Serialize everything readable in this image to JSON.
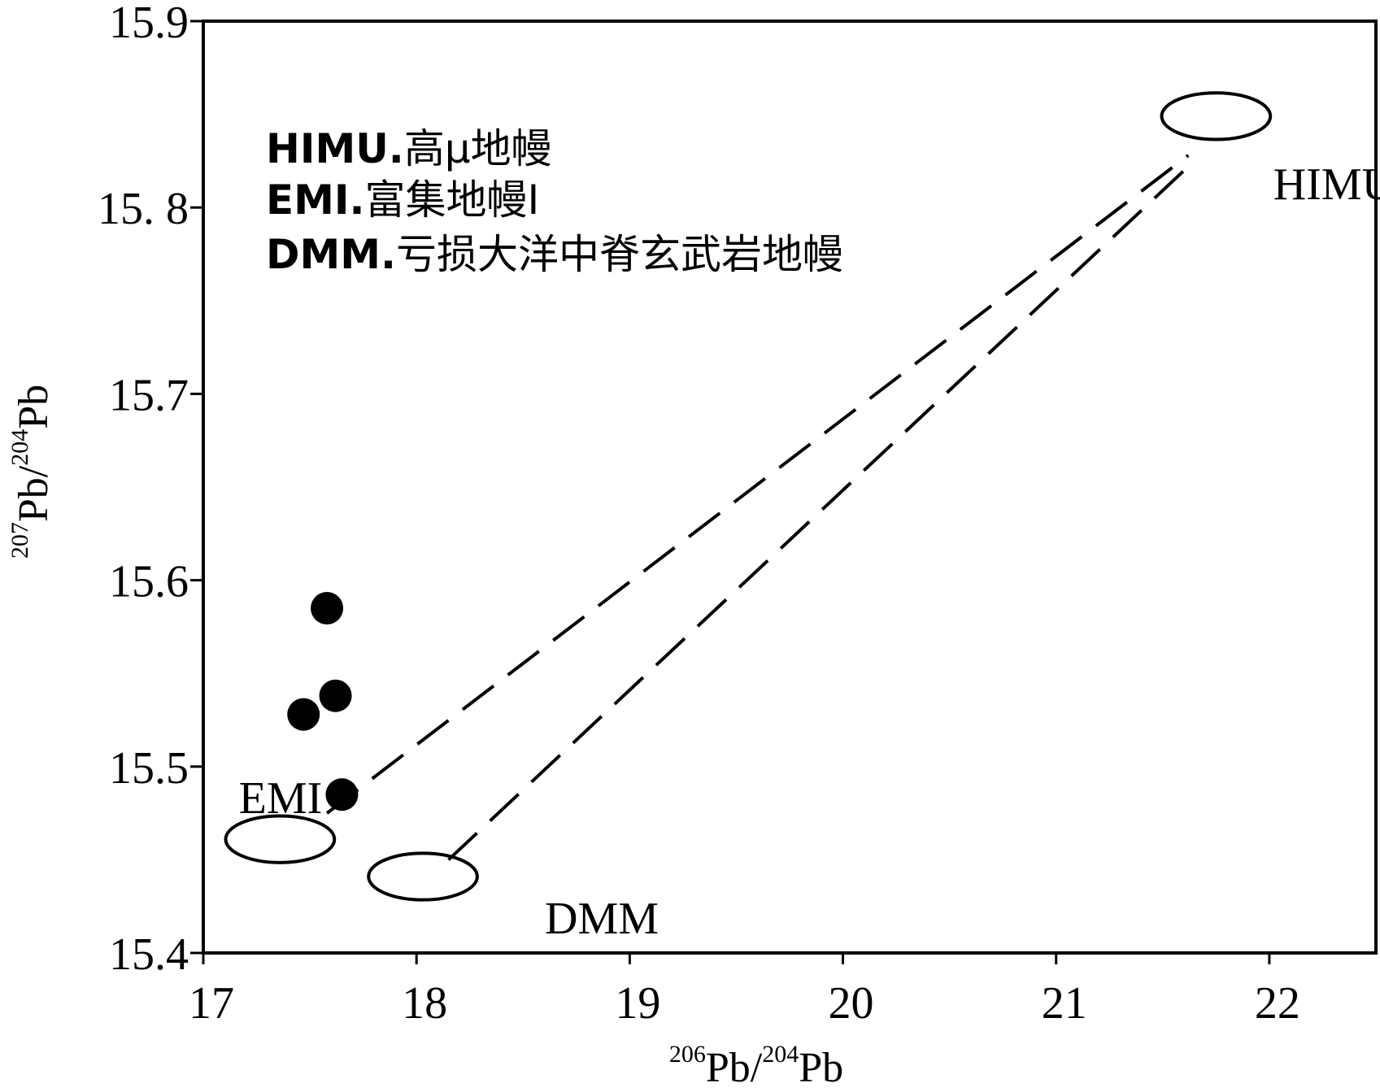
{
  "chart_data": {
    "type": "scatter",
    "title": "",
    "xlabel": {
      "sup1": "206",
      "base1": "Pb/",
      "sup2": "204",
      "base2": "Pb"
    },
    "ylabel": {
      "sup1": "207",
      "base1": "Pb/",
      "sup2": "204",
      "base2": "Pb"
    },
    "xlim": [
      17,
      22.5
    ],
    "ylim": [
      15.4,
      15.9
    ],
    "x_ticks": [
      {
        "value": 17,
        "label": "17"
      },
      {
        "value": 18,
        "label": "18"
      },
      {
        "value": 19,
        "label": "19"
      },
      {
        "value": 20,
        "label": "20"
      },
      {
        "value": 21,
        "label": "21"
      },
      {
        "value": 22,
        "label": "22"
      }
    ],
    "y_ticks": [
      {
        "value": 15.4,
        "label": "15.4"
      },
      {
        "value": 15.5,
        "label": "15.5"
      },
      {
        "value": 15.6,
        "label": "15.6"
      },
      {
        "value": 15.7,
        "label": "15.7"
      },
      {
        "value": 15.8,
        "label": "15. 8"
      },
      {
        "value": 15.9,
        "label": "15.9"
      }
    ],
    "grid": false,
    "points": [
      {
        "x": 17.58,
        "y": 15.585
      },
      {
        "x": 17.62,
        "y": 15.538
      },
      {
        "x": 17.47,
        "y": 15.528
      },
      {
        "x": 17.65,
        "y": 15.485
      }
    ],
    "fields": [
      {
        "name": "EMI",
        "cx": 17.36,
        "cy": 15.461,
        "rx": 0.255,
        "ry": 0.0125
      },
      {
        "name": "DMM",
        "cx": 18.03,
        "cy": 15.441,
        "rx": 0.255,
        "ry": 0.0125
      },
      {
        "name": "HIMU",
        "cx": 21.75,
        "cy": 15.849,
        "rx": 0.255,
        "ry": 0.0125
      }
    ],
    "mixing_lines": [
      {
        "from": "EMI",
        "x1": 17.58,
        "y1": 15.475,
        "x2": 21.62,
        "y2": 15.828
      },
      {
        "from": "DMM",
        "x1": 18.15,
        "y1": 15.45,
        "x2": 21.62,
        "y2": 15.822
      }
    ],
    "legend": {
      "placement": "top-left",
      "entries": [
        {
          "code": "HIMU.",
          "text": "高μ地幔"
        },
        {
          "code": "EMI.",
          "text": "富集地幔Ⅰ"
        },
        {
          "code": "DMM.",
          "text": "亏损大洋中脊玄武岩地幔"
        }
      ]
    }
  }
}
